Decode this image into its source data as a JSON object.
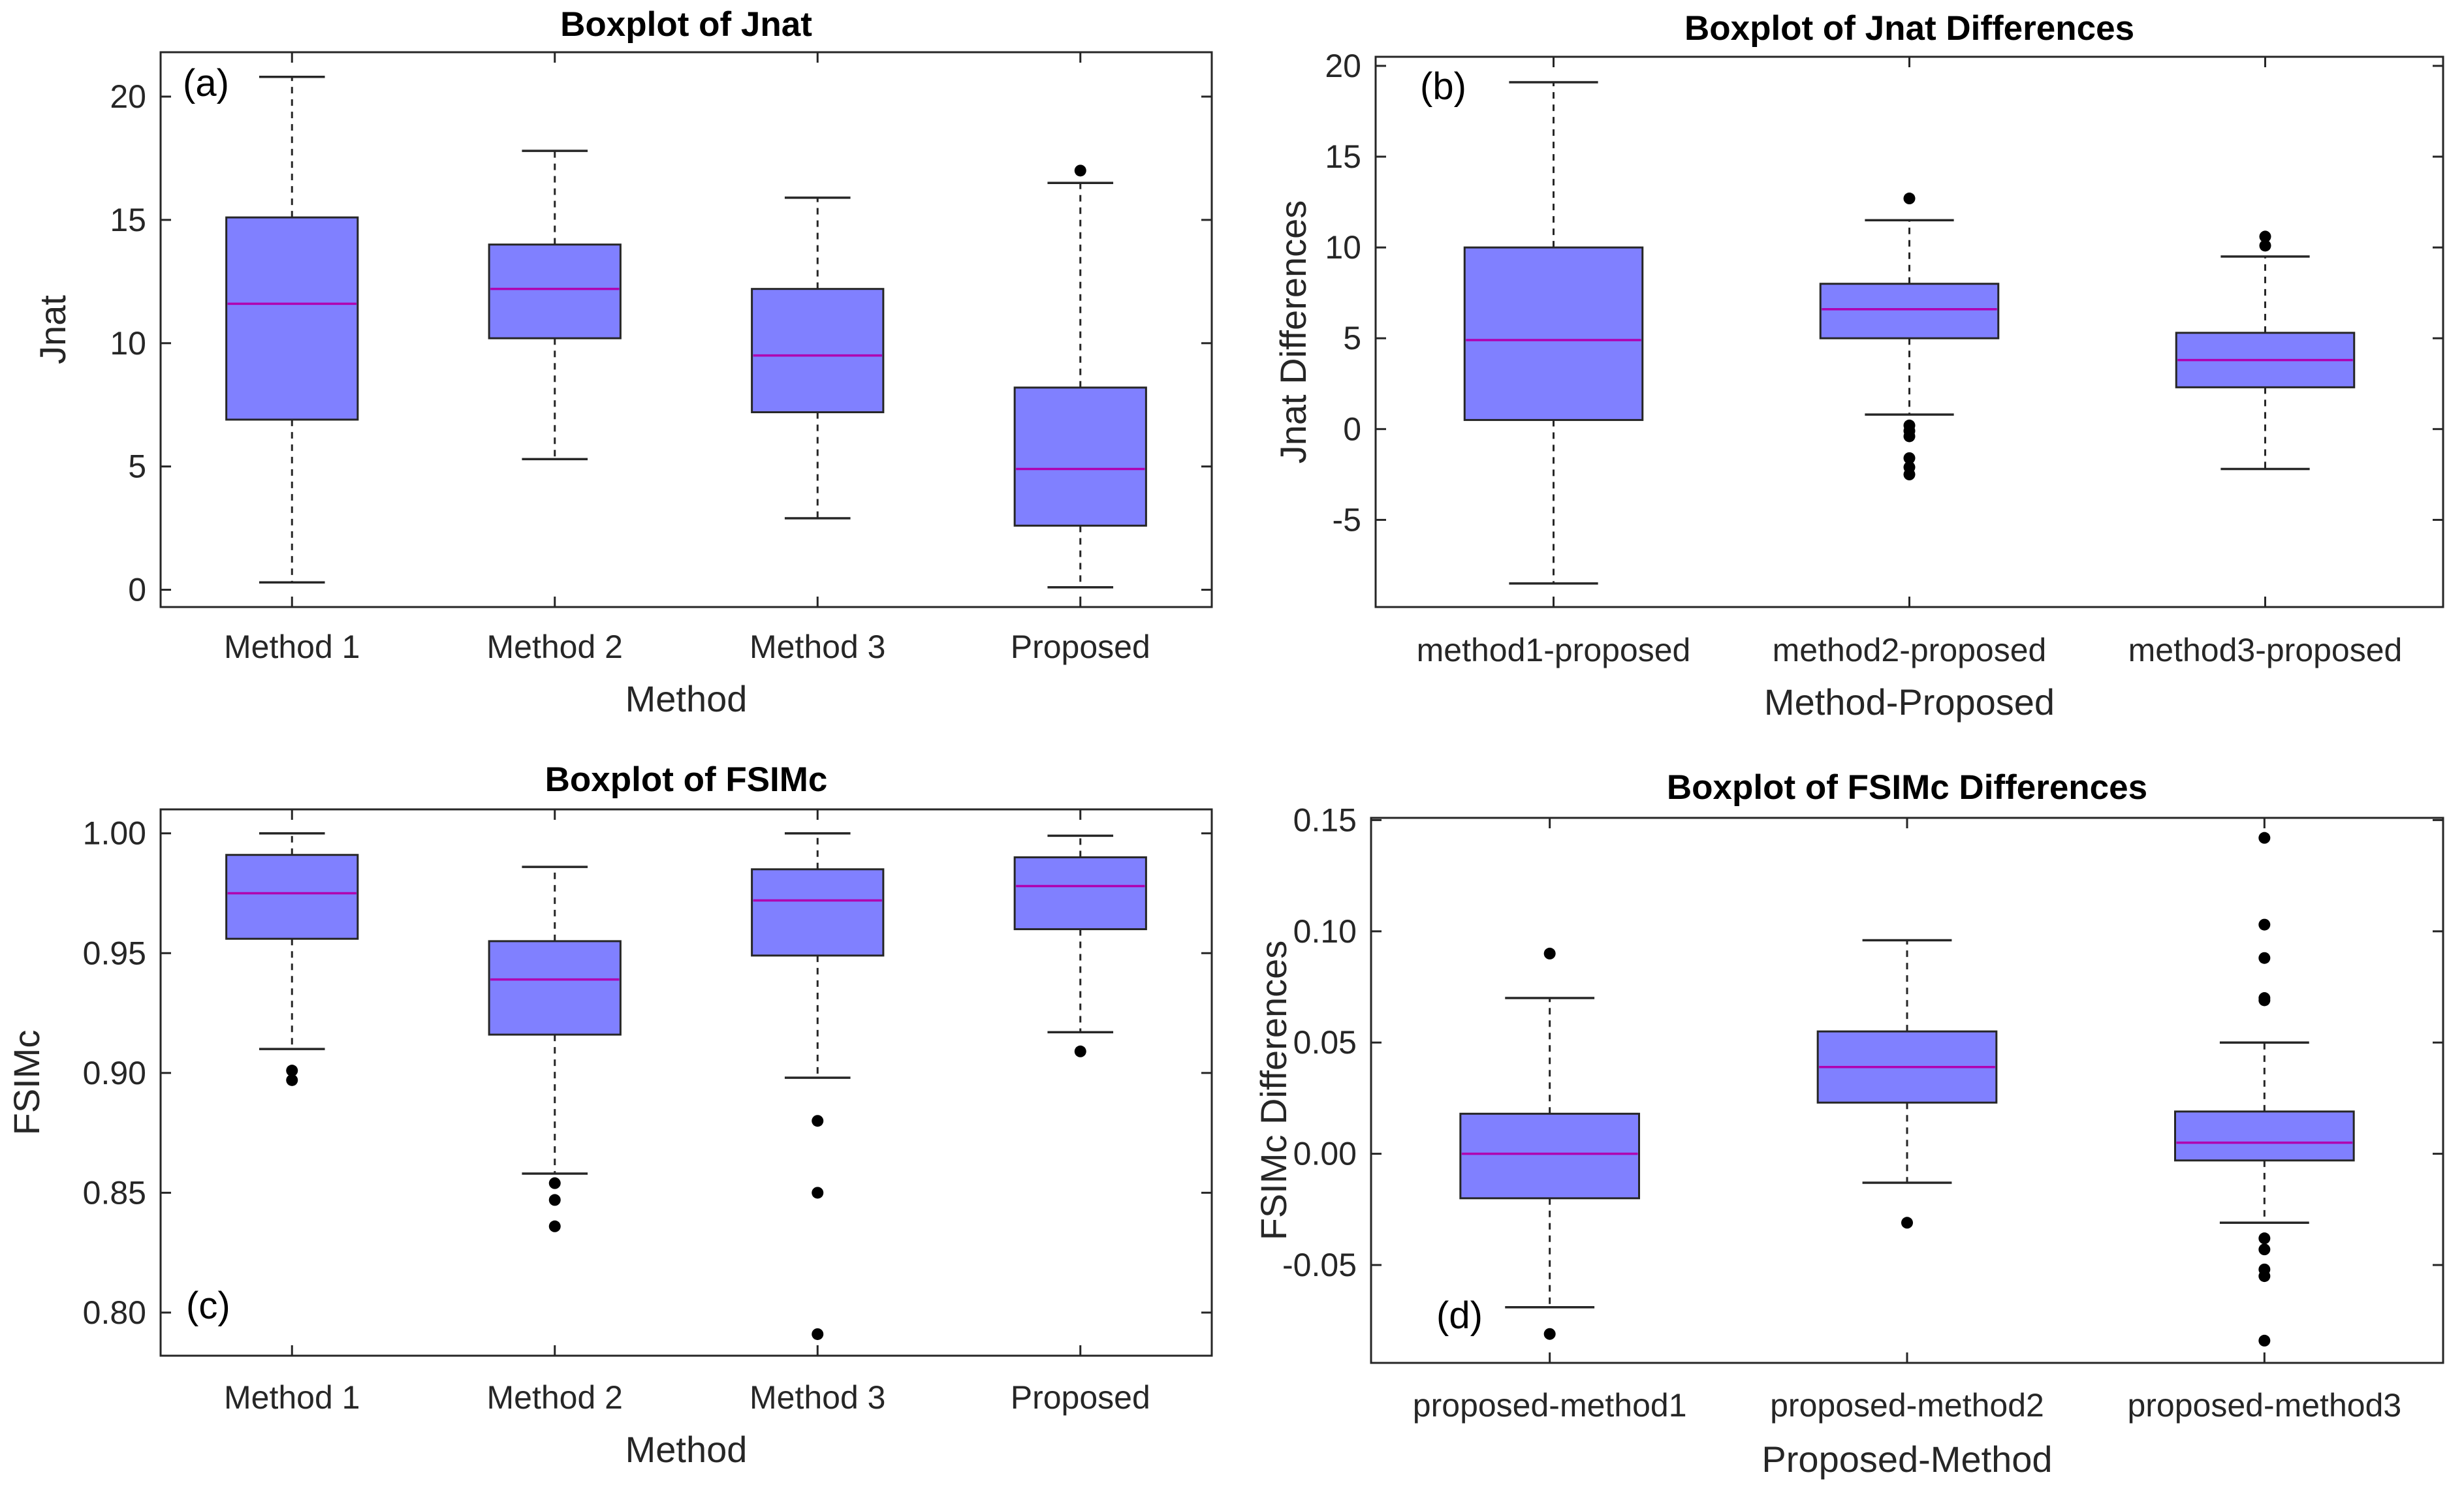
{
  "figure_colors": {
    "box_fill": "#8080FF",
    "median": "#B000B0",
    "outline": "#262626",
    "outlier": "#000000"
  },
  "chart_data": [
    {
      "type": "boxplot",
      "panel": "(a)",
      "title": "Boxplot of Jnat",
      "xlabel": "Method",
      "ylabel": "Jnat",
      "ylim": [
        -0.7,
        21.8
      ],
      "yticks": [
        0,
        5,
        10,
        15,
        20
      ],
      "ytick_labels": [
        "0",
        "5",
        "10",
        "15",
        "20"
      ],
      "categories": [
        "Method 1",
        "Method 2",
        "Method 3",
        "Proposed"
      ],
      "boxes": [
        {
          "whisker_low": 0.3,
          "q1": 6.9,
          "median": 11.6,
          "q3": 15.1,
          "whisker_high": 20.8,
          "outliers": []
        },
        {
          "whisker_low": 5.3,
          "q1": 10.2,
          "median": 12.2,
          "q3": 14.0,
          "whisker_high": 17.8,
          "outliers": []
        },
        {
          "whisker_low": 2.9,
          "q1": 7.2,
          "median": 9.5,
          "q3": 12.2,
          "whisker_high": 15.9,
          "outliers": []
        },
        {
          "whisker_low": 0.1,
          "q1": 2.6,
          "median": 4.9,
          "q3": 8.2,
          "whisker_high": 16.5,
          "outliers": [
            17.0
          ]
        }
      ]
    },
    {
      "type": "boxplot",
      "panel": "(b)",
      "title": "Boxplot of Jnat Differences",
      "xlabel": "Method-Proposed",
      "ylabel": "Jnat Differences",
      "ylim": [
        -9.8,
        20.5
      ],
      "yticks": [
        -5,
        0,
        5,
        10,
        15,
        20
      ],
      "ytick_labels": [
        "-5",
        "0",
        "5",
        "10",
        "15",
        "20"
      ],
      "categories": [
        "method1-proposed",
        "method2-proposed",
        "method3-proposed"
      ],
      "boxes": [
        {
          "whisker_low": -8.5,
          "q1": 0.5,
          "median": 4.9,
          "q3": 10.0,
          "whisker_high": 19.1,
          "outliers": []
        },
        {
          "whisker_low": 0.8,
          "q1": 5.0,
          "median": 6.6,
          "q3": 8.0,
          "whisker_high": 11.5,
          "outliers": [
            12.7,
            0.2,
            -0.1,
            -0.4,
            -1.6,
            -2.1,
            -2.5
          ]
        },
        {
          "whisker_low": -2.2,
          "q1": 2.3,
          "median": 3.8,
          "q3": 5.3,
          "whisker_high": 9.5,
          "outliers": [
            10.1,
            10.6
          ]
        }
      ]
    },
    {
      "type": "boxplot",
      "panel": "(c)",
      "title": "Boxplot of FSIMc",
      "xlabel": "Method",
      "ylabel": "FSIMc",
      "ylim": [
        0.782,
        1.01
      ],
      "yticks": [
        0.8,
        0.85,
        0.9,
        0.95,
        1.0
      ],
      "ytick_labels": [
        "0.80",
        "0.85",
        "0.90",
        "0.95",
        "1.00"
      ],
      "categories": [
        "Method 1",
        "Method 2",
        "Method 3",
        "Proposed"
      ],
      "boxes": [
        {
          "whisker_low": 0.91,
          "q1": 0.956,
          "median": 0.975,
          "q3": 0.991,
          "whisker_high": 1.0,
          "outliers": [
            0.897,
            0.901
          ]
        },
        {
          "whisker_low": 0.858,
          "q1": 0.916,
          "median": 0.939,
          "q3": 0.955,
          "whisker_high": 0.986,
          "outliers": [
            0.854,
            0.847,
            0.836
          ]
        },
        {
          "whisker_low": 0.898,
          "q1": 0.949,
          "median": 0.972,
          "q3": 0.985,
          "whisker_high": 1.0,
          "outliers": [
            0.88,
            0.85,
            0.791
          ]
        },
        {
          "whisker_low": 0.917,
          "q1": 0.96,
          "median": 0.978,
          "q3": 0.99,
          "whisker_high": 0.999,
          "outliers": [
            0.909
          ]
        }
      ]
    },
    {
      "type": "boxplot",
      "panel": "(d)",
      "title": "Boxplot of FSIMc Differences",
      "xlabel": "Proposed-Method",
      "ylabel": "FSIMc Differences",
      "ylim": [
        -0.094,
        0.151
      ],
      "yticks": [
        -0.05,
        0.0,
        0.05,
        0.1,
        0.15
      ],
      "ytick_labels": [
        "-0.05",
        "0.00",
        "0.05",
        "0.10",
        "0.15"
      ],
      "categories": [
        "proposed-method1",
        "proposed-method2",
        "proposed-method3"
      ],
      "boxes": [
        {
          "whisker_low": -0.069,
          "q1": -0.02,
          "median": 0.0,
          "q3": 0.018,
          "whisker_high": 0.07,
          "outliers": [
            0.09,
            -0.081
          ]
        },
        {
          "whisker_low": -0.013,
          "q1": 0.023,
          "median": 0.039,
          "q3": 0.055,
          "whisker_high": 0.096,
          "outliers": [
            -0.031
          ]
        },
        {
          "whisker_low": -0.031,
          "q1": -0.003,
          "median": 0.005,
          "q3": 0.019,
          "whisker_high": 0.05,
          "outliers": [
            0.142,
            0.103,
            0.088,
            0.07,
            0.069,
            -0.038,
            -0.043,
            -0.052,
            -0.055,
            -0.084
          ]
        }
      ]
    }
  ]
}
